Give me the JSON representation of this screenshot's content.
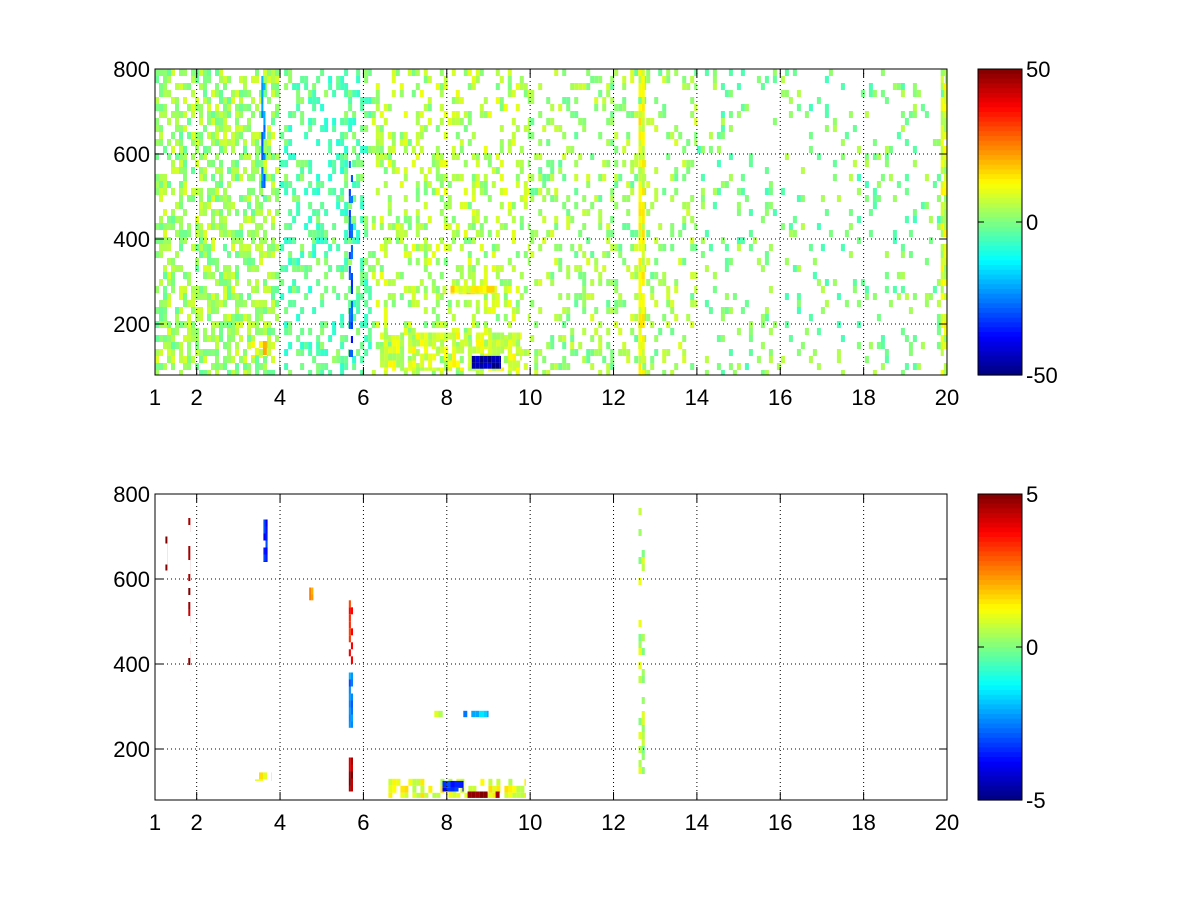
{
  "figure": {
    "background": "#ffffff"
  },
  "chart_data": [
    {
      "type": "heatmap",
      "title": "",
      "xlabel": "",
      "ylabel": "",
      "xlim": [
        1,
        20
      ],
      "ylim": [
        80,
        800
      ],
      "xticks": [
        1,
        2,
        4,
        6,
        8,
        10,
        12,
        14,
        16,
        18,
        20
      ],
      "xtick_labels": [
        "1",
        "2",
        "4",
        "6",
        "8",
        "10",
        "12",
        "14",
        "16",
        "18",
        "20"
      ],
      "yticks": [
        200,
        400,
        600,
        800
      ],
      "ytick_labels": [
        "200",
        "400",
        "600",
        "800"
      ],
      "grid": "dotted",
      "colormap": "jet",
      "colorbar": {
        "min": -50,
        "max": 50,
        "ticks": [
          -50,
          0,
          50
        ],
        "tick_labels": [
          "-50",
          "0",
          "50"
        ],
        "placement": "right"
      },
      "features": [
        {
          "x": [
            1.0,
            4.0
          ],
          "y": [
            80,
            800
          ],
          "value": 3,
          "density": 0.55,
          "note": "dense fine columns"
        },
        {
          "x": [
            4.0,
            6.2
          ],
          "y": [
            80,
            800
          ],
          "value": -3,
          "density": 0.35
        },
        {
          "x": [
            6.2,
            10.0
          ],
          "y": [
            80,
            800
          ],
          "value": 5,
          "density": 0.3
        },
        {
          "x": [
            10.0,
            14.0
          ],
          "y": [
            80,
            800
          ],
          "value": 3,
          "density": 0.25
        },
        {
          "x": [
            14.0,
            20.0
          ],
          "y": [
            80,
            800
          ],
          "value": 0,
          "density": 0.12
        },
        {
          "x": [
            12.6,
            12.75
          ],
          "y": [
            80,
            800
          ],
          "value": 10,
          "density": 0.9,
          "note": "strong vertical stripe"
        },
        {
          "x": [
            19.85,
            20.0
          ],
          "y": [
            80,
            800
          ],
          "value": 8,
          "density": 0.8
        },
        {
          "x": [
            5.65,
            5.75
          ],
          "y": [
            120,
            600
          ],
          "value": -30,
          "density": 0.5
        },
        {
          "x": [
            3.55,
            3.65
          ],
          "y": [
            500,
            800
          ],
          "value": -25,
          "density": 0.5
        },
        {
          "x": [
            3.3,
            3.7
          ],
          "y": [
            120,
            160
          ],
          "value": 15,
          "density": 0.8
        },
        {
          "x": [
            7.8,
            9.2
          ],
          "y": [
            270,
            290
          ],
          "value": 12,
          "density": 0.8
        },
        {
          "x": [
            6.4,
            9.8
          ],
          "y": [
            90,
            180
          ],
          "value": 8,
          "density": 0.7
        },
        {
          "x": [
            8.6,
            9.3
          ],
          "y": [
            95,
            125
          ],
          "value": -45,
          "density": 0.9
        }
      ]
    },
    {
      "type": "heatmap",
      "title": "",
      "xlabel": "",
      "ylabel": "",
      "xlim": [
        1,
        20
      ],
      "ylim": [
        80,
        800
      ],
      "xticks": [
        1,
        2,
        4,
        6,
        8,
        10,
        12,
        14,
        16,
        18,
        20
      ],
      "xtick_labels": [
        "1",
        "2",
        "4",
        "6",
        "8",
        "10",
        "12",
        "14",
        "16",
        "18",
        "20"
      ],
      "yticks": [
        200,
        400,
        600,
        800
      ],
      "ytick_labels": [
        "200",
        "400",
        "600",
        "800"
      ],
      "grid": "dotted",
      "colormap": "jet",
      "colorbar": {
        "min": -5,
        "max": 5,
        "ticks": [
          -5,
          0,
          5
        ],
        "tick_labels": [
          "-5",
          "0",
          "5"
        ],
        "placement": "right"
      },
      "features": [
        {
          "x": [
            1.25,
            1.3
          ],
          "y": [
            620,
            700
          ],
          "value": 4.5,
          "density": 0.6
        },
        {
          "x": [
            1.8,
            1.85
          ],
          "y": [
            360,
            760
          ],
          "value": 4.8,
          "density": 0.4
        },
        {
          "x": [
            3.6,
            3.7
          ],
          "y": [
            640,
            740
          ],
          "value": -3.5,
          "density": 0.9
        },
        {
          "x": [
            4.7,
            4.8
          ],
          "y": [
            550,
            580
          ],
          "value": 2.5,
          "density": 0.9
        },
        {
          "x": [
            5.65,
            5.75
          ],
          "y": [
            400,
            550
          ],
          "value": 3.5,
          "density": 0.8
        },
        {
          "x": [
            5.65,
            5.75
          ],
          "y": [
            250,
            380
          ],
          "value": -2.5,
          "density": 0.8
        },
        {
          "x": [
            5.65,
            5.75
          ],
          "y": [
            100,
            180
          ],
          "value": 4.5,
          "density": 0.8
        },
        {
          "x": [
            12.6,
            12.75
          ],
          "y": [
            120,
            800
          ],
          "value": 0.5,
          "density": 0.35
        },
        {
          "x": [
            7.7,
            7.9
          ],
          "y": [
            275,
            290
          ],
          "value": 1.0,
          "density": 0.9
        },
        {
          "x": [
            8.3,
            9.0
          ],
          "y": [
            275,
            290
          ],
          "value": -2.0,
          "density": 0.8
        },
        {
          "x": [
            6.6,
            9.9
          ],
          "y": [
            85,
            130
          ],
          "value": 1.0,
          "density": 0.6
        },
        {
          "x": [
            8.5,
            9.3
          ],
          "y": [
            85,
            100
          ],
          "value": 4.5,
          "density": 0.8
        },
        {
          "x": [
            7.8,
            8.4
          ],
          "y": [
            100,
            125
          ],
          "value": -3.5,
          "density": 0.7
        },
        {
          "x": [
            3.4,
            3.8
          ],
          "y": [
            125,
            145
          ],
          "value": 1.5,
          "density": 0.6
        }
      ]
    }
  ]
}
